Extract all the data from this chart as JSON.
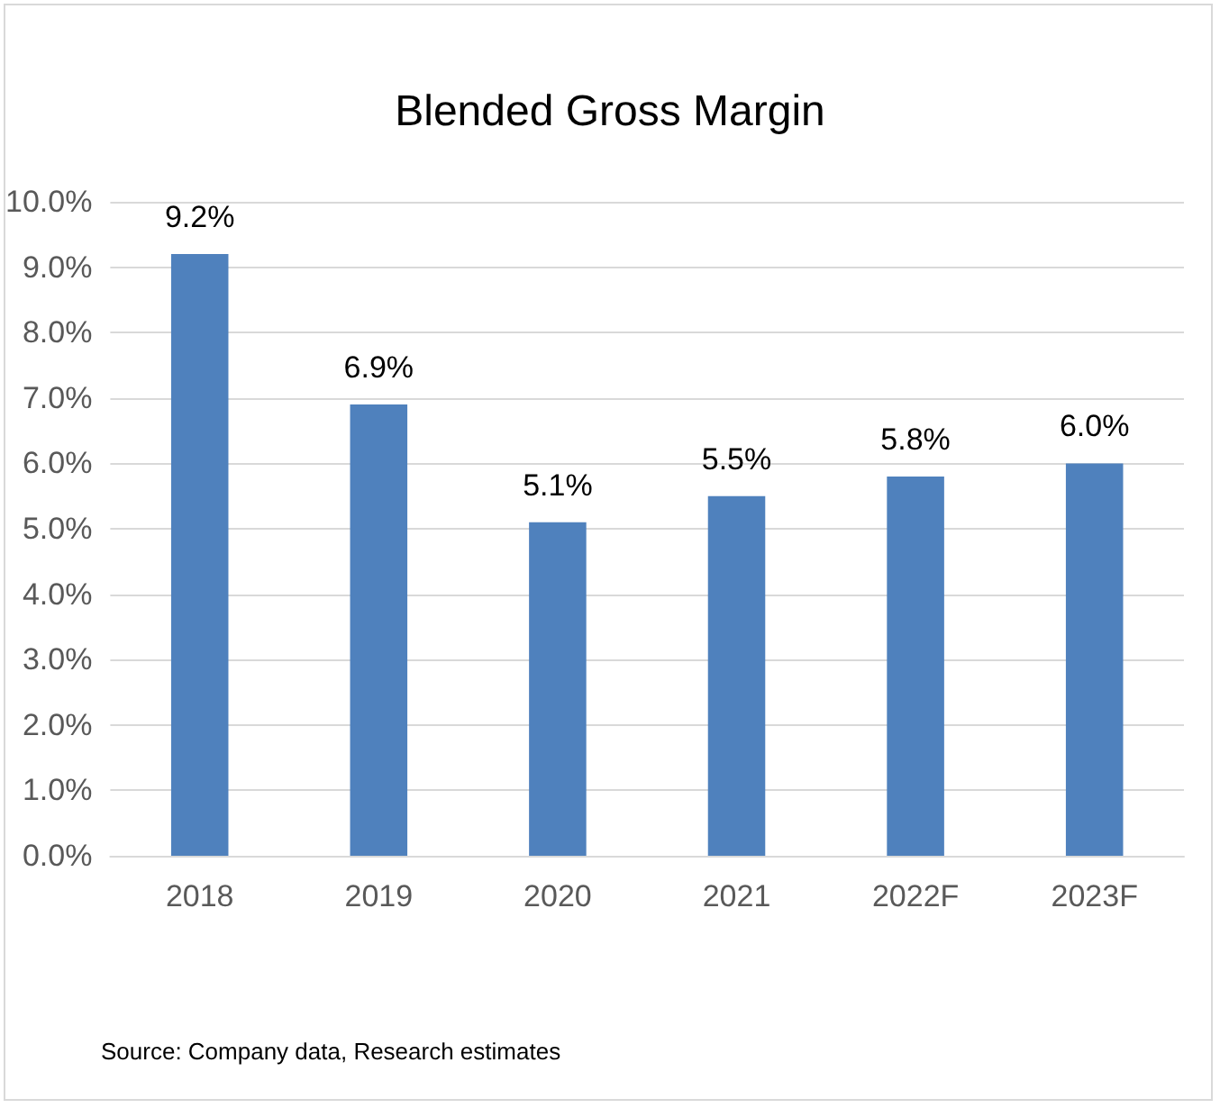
{
  "chart_data": {
    "type": "bar",
    "title": "Blended Gross Margin",
    "categories": [
      "2018",
      "2019",
      "2020",
      "2021",
      "2022F",
      "2023F"
    ],
    "values": [
      9.2,
      6.9,
      5.1,
      5.5,
      5.8,
      6.0
    ],
    "value_labels": [
      "9.2%",
      "6.9%",
      "5.1%",
      "5.5%",
      "5.8%",
      "6.0%"
    ],
    "color": "#4f81bd",
    "ylim": [
      0,
      10
    ],
    "yticks": [
      {
        "value": 0,
        "label": "0.0%"
      },
      {
        "value": 1,
        "label": "1.0%"
      },
      {
        "value": 2,
        "label": "2.0%"
      },
      {
        "value": 3,
        "label": "3.0%"
      },
      {
        "value": 4,
        "label": "4.0%"
      },
      {
        "value": 5,
        "label": "5.0%"
      },
      {
        "value": 6,
        "label": "6.0%"
      },
      {
        "value": 7,
        "label": "7.0%"
      },
      {
        "value": 8,
        "label": "8.0%"
      },
      {
        "value": 9,
        "label": "9.0%"
      },
      {
        "value": 10,
        "label": "10.0%"
      }
    ],
    "grid": "y",
    "annotations": [
      "Source: Company data, Research estimates"
    ]
  }
}
